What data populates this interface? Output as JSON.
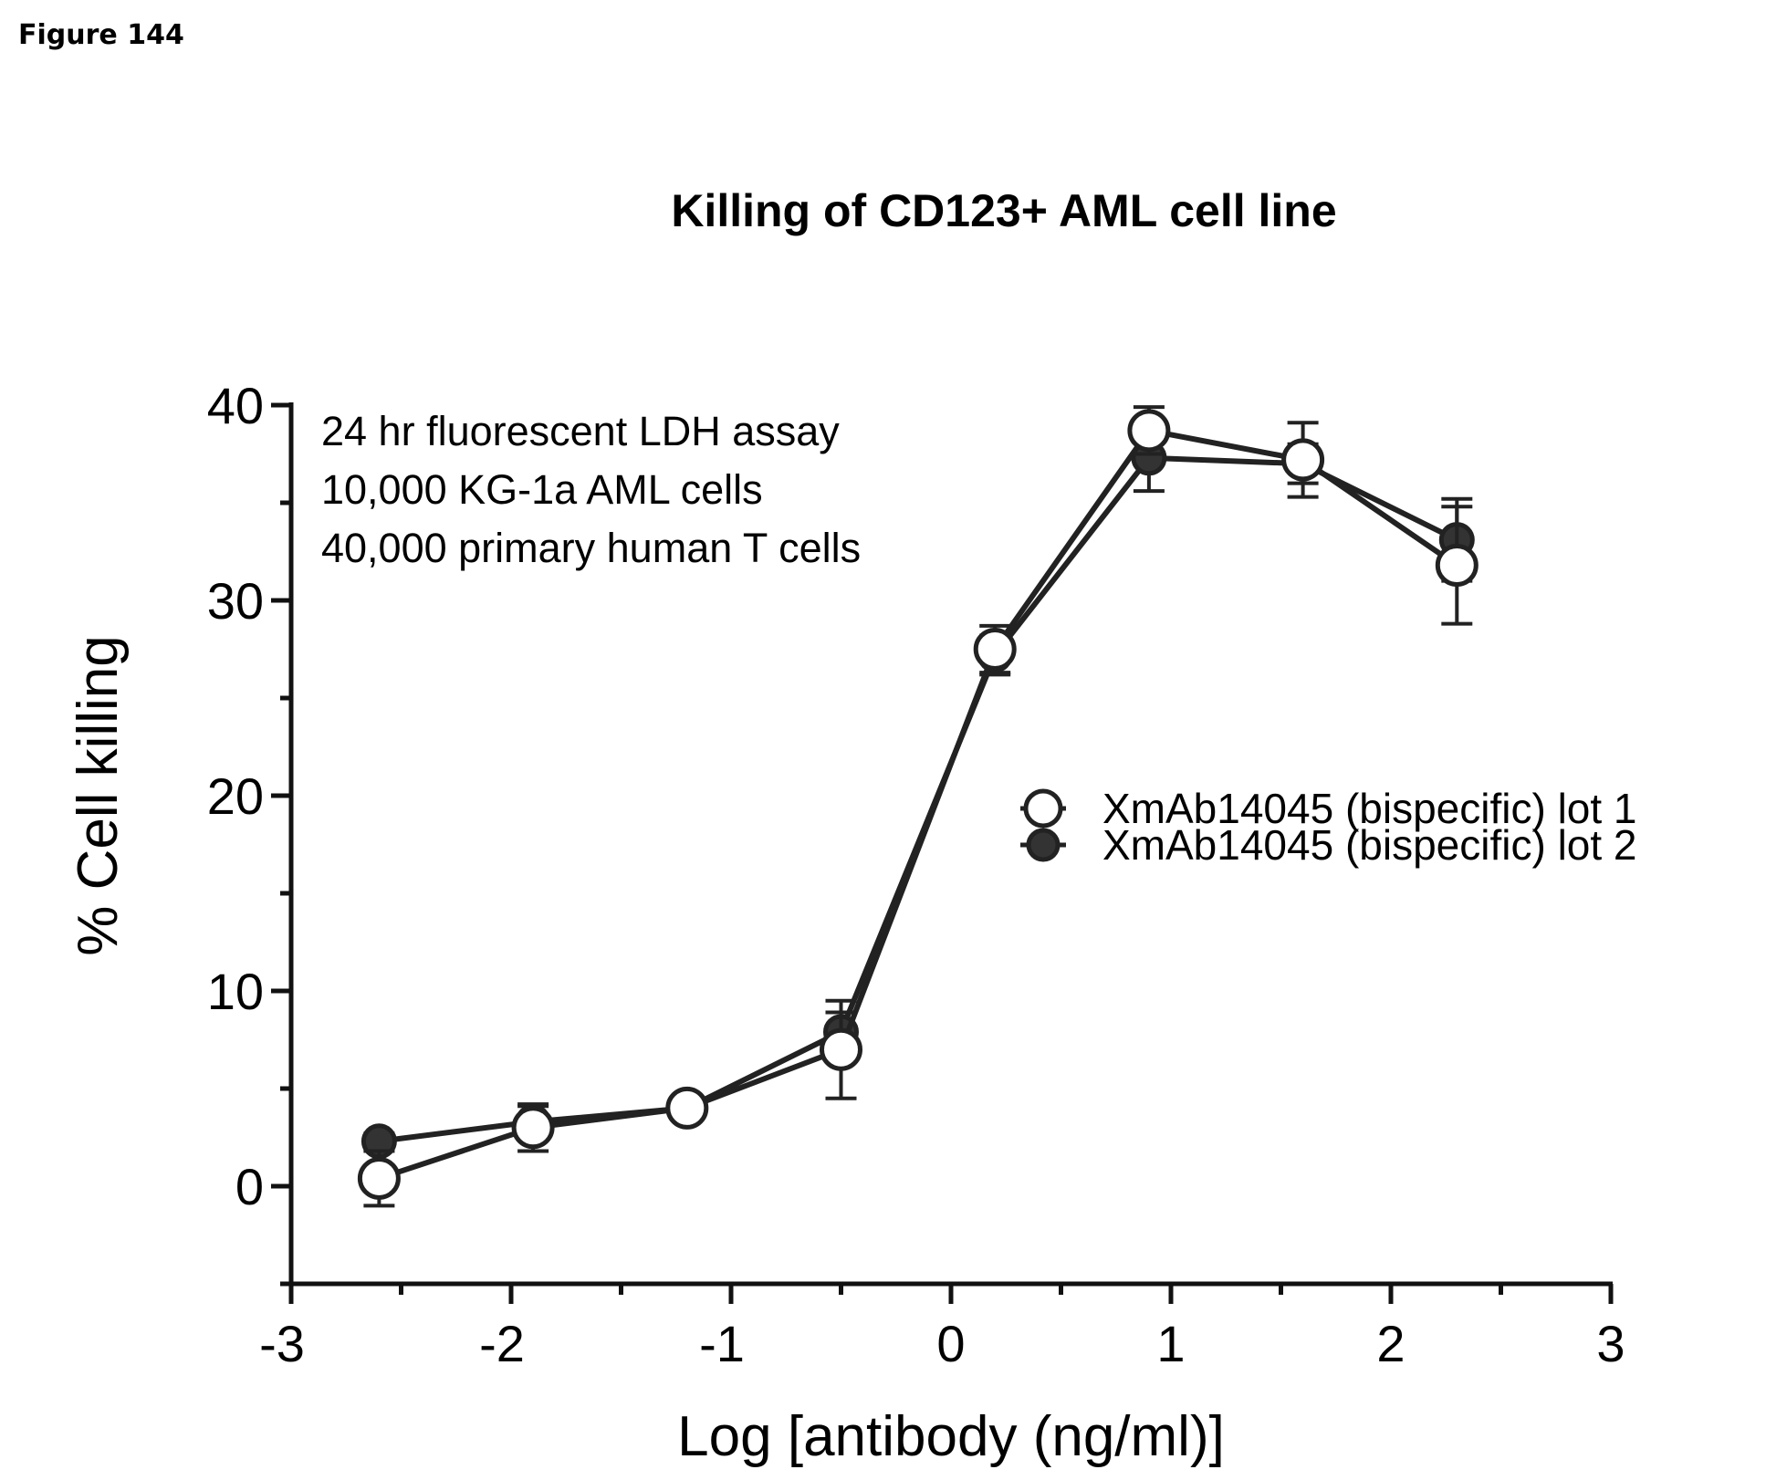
{
  "figure_label": "Figure 144",
  "chart_data": {
    "type": "line",
    "title": "Killing of CD123+ AML cell line",
    "xlabel": "Log [antibody (ng/ml)]",
    "ylabel": "% Cell killing",
    "xlim": [
      -3,
      3
    ],
    "ylim": [
      -5,
      40
    ],
    "xticks": [
      "-3",
      "-2",
      "-1",
      "0",
      "1",
      "2",
      "3"
    ],
    "yticks": [
      "0",
      "10",
      "20",
      "30",
      "40"
    ],
    "grid": false,
    "legend_position": "right-middle",
    "annotations": [
      "24 hr fluorescent LDH assay",
      "10,000 KG-1a AML cells",
      "40,000 primary human T cells"
    ],
    "x": [
      -2.6,
      -1.9,
      -1.2,
      -0.5,
      0.2,
      0.9,
      1.6,
      2.3
    ],
    "series": [
      {
        "name": "XmAb14045 (bispecific) lot 1",
        "marker": "open-circle",
        "values": [
          0.4,
          3.0,
          4.0,
          7.0,
          27.5,
          38.7,
          37.2,
          31.8
        ],
        "errors": [
          1.4,
          1.2,
          0.3,
          2.5,
          1.2,
          1.2,
          1.9,
          3.0
        ]
      },
      {
        "name": "XmAb14045 (bispecific) lot 2",
        "marker": "filled-circle",
        "values": [
          2.3,
          3.3,
          4.0,
          7.9,
          27.2,
          37.3,
          37.0,
          33.1
        ],
        "errors": [
          0.4,
          0.8,
          0.3,
          1.0,
          1.0,
          1.7,
          1.0,
          2.1
        ]
      }
    ]
  }
}
